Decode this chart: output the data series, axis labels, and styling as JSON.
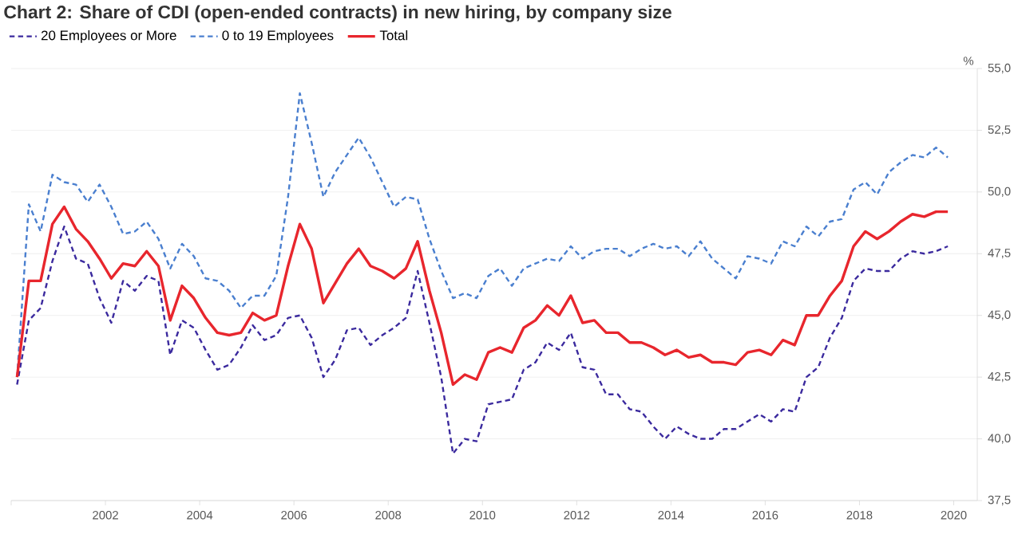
{
  "chart_data": {
    "type": "line",
    "title": "Chart 2: Share of CDI (open-ended contracts) in new hiring, by company size",
    "ylabel": "%",
    "x": [
      2000.125,
      2000.375,
      2000.625,
      2000.875,
      2001.125,
      2001.375,
      2001.625,
      2001.875,
      2002.125,
      2002.375,
      2002.625,
      2002.875,
      2003.125,
      2003.375,
      2003.625,
      2003.875,
      2004.125,
      2004.375,
      2004.625,
      2004.875,
      2005.125,
      2005.375,
      2005.625,
      2005.875,
      2006.125,
      2006.375,
      2006.625,
      2006.875,
      2007.125,
      2007.375,
      2007.625,
      2007.875,
      2008.125,
      2008.375,
      2008.625,
      2008.875,
      2009.125,
      2009.375,
      2009.625,
      2009.875,
      2010.125,
      2010.375,
      2010.625,
      2010.875,
      2011.125,
      2011.375,
      2011.625,
      2011.875,
      2012.125,
      2012.375,
      2012.625,
      2012.875,
      2013.125,
      2013.375,
      2013.625,
      2013.875,
      2014.125,
      2014.375,
      2014.625,
      2014.875,
      2015.125,
      2015.375,
      2015.625,
      2015.875,
      2016.125,
      2016.375,
      2016.625,
      2016.875,
      2017.125,
      2017.375,
      2017.625,
      2017.875,
      2018.125,
      2018.375,
      2018.625,
      2018.875,
      2019.125,
      2019.375,
      2019.625,
      2019.875
    ],
    "series": [
      {
        "name": "20 Employees or More",
        "color": "#3b2a9e",
        "line_style": "dashed",
        "values": [
          42.2,
          44.8,
          45.3,
          47.2,
          48.6,
          47.3,
          47.1,
          45.7,
          44.7,
          46.4,
          46.0,
          46.6,
          46.4,
          43.4,
          44.8,
          44.5,
          43.6,
          42.8,
          43.0,
          43.7,
          44.6,
          44.0,
          44.2,
          44.9,
          45.0,
          44.1,
          42.5,
          43.2,
          44.4,
          44.5,
          43.8,
          44.2,
          44.5,
          44.9,
          46.8,
          44.7,
          42.5,
          39.4,
          40.0,
          39.9,
          41.4,
          41.5,
          41.6,
          42.8,
          43.1,
          43.9,
          43.6,
          44.3,
          42.9,
          42.8,
          41.8,
          41.8,
          41.2,
          41.1,
          40.5,
          40.0,
          40.5,
          40.2,
          40.0,
          40.0,
          40.4,
          40.4,
          40.7,
          41.0,
          40.7,
          41.2,
          41.1,
          42.5,
          42.9,
          44.1,
          44.9,
          46.4,
          46.9,
          46.8,
          46.8,
          47.3,
          47.6,
          47.5,
          47.6,
          47.8
        ]
      },
      {
        "name": "0 to 19 Employees",
        "color": "#4a7fcf",
        "line_style": "dashed",
        "values": [
          42.5,
          49.5,
          48.4,
          50.7,
          50.4,
          50.3,
          49.6,
          50.3,
          49.4,
          48.3,
          48.4,
          48.8,
          48.1,
          46.9,
          47.9,
          47.4,
          46.5,
          46.4,
          46.0,
          45.3,
          45.8,
          45.8,
          46.6,
          49.8,
          54.0,
          52.0,
          49.8,
          50.8,
          51.5,
          52.2,
          51.4,
          50.4,
          49.4,
          49.8,
          49.7,
          48.1,
          46.8,
          45.7,
          45.9,
          45.7,
          46.6,
          46.9,
          46.2,
          46.9,
          47.1,
          47.3,
          47.2,
          47.8,
          47.3,
          47.6,
          47.7,
          47.7,
          47.4,
          47.7,
          47.9,
          47.7,
          47.8,
          47.4,
          48.0,
          47.3,
          46.9,
          46.5,
          47.4,
          47.3,
          47.1,
          48.0,
          47.8,
          48.6,
          48.2,
          48.8,
          48.9,
          50.1,
          50.4,
          49.9,
          50.8,
          51.2,
          51.5,
          51.4,
          51.8,
          51.4
        ]
      },
      {
        "name": "Total",
        "color": "#e8262d",
        "line_style": "solid",
        "values": [
          42.5,
          46.4,
          46.4,
          48.7,
          49.4,
          48.5,
          48.0,
          47.3,
          46.5,
          47.1,
          47.0,
          47.6,
          47.0,
          44.8,
          46.2,
          45.7,
          44.9,
          44.3,
          44.2,
          44.3,
          45.1,
          44.8,
          45.0,
          47.0,
          48.7,
          47.7,
          45.5,
          46.3,
          47.1,
          47.7,
          47.0,
          46.8,
          46.5,
          46.9,
          48.0,
          46.0,
          44.3,
          42.2,
          42.6,
          42.4,
          43.5,
          43.7,
          43.5,
          44.5,
          44.8,
          45.4,
          45.0,
          45.8,
          44.7,
          44.8,
          44.3,
          44.3,
          43.9,
          43.9,
          43.7,
          43.4,
          43.6,
          43.3,
          43.4,
          43.1,
          43.1,
          43.0,
          43.5,
          43.6,
          43.4,
          44.0,
          43.8,
          45.0,
          45.0,
          45.8,
          46.4,
          47.8,
          48.4,
          48.1,
          48.4,
          48.8,
          49.1,
          49.0,
          49.2,
          49.2
        ]
      }
    ],
    "xlim": [
      2000,
      2020.5
    ],
    "ylim": [
      37.5,
      55
    ],
    "xticks": [
      {
        "value": 2000,
        "label": null
      },
      2002,
      2004,
      2006,
      2008,
      2010,
      2012,
      2014,
      2016,
      2018,
      2020
    ],
    "yticks": [
      {
        "value": 37.5,
        "label": "37,5"
      },
      {
        "value": 40,
        "label": "40,0"
      },
      {
        "value": 42.5,
        "label": "42,5"
      },
      {
        "value": 45,
        "label": "45,0"
      },
      {
        "value": 47.5,
        "label": "47,5"
      },
      {
        "value": 50,
        "label": "50,0"
      },
      {
        "value": 52.5,
        "label": "52,5"
      },
      {
        "value": 55,
        "label": "55,0"
      }
    ],
    "grid": "y",
    "legend": "top left"
  }
}
